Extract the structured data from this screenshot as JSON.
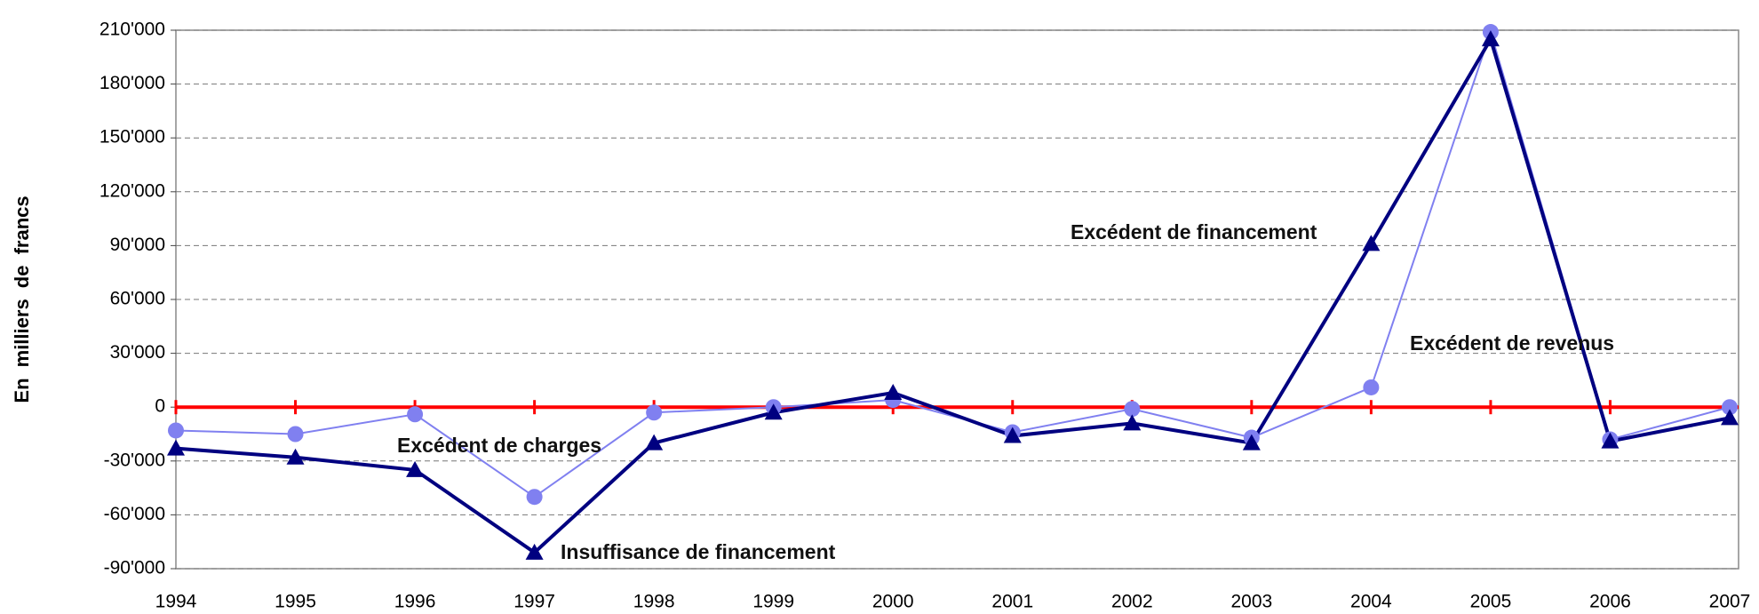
{
  "chart_data": {
    "type": "line",
    "y_label": "En milliers de francs",
    "categories": [
      "1994",
      "1995",
      "1996",
      "1997",
      "1998",
      "1999",
      "2000",
      "2001",
      "2002",
      "2003",
      "2004",
      "2005",
      "2006",
      "2007"
    ],
    "series": [
      {
        "color": "#8080f0",
        "marker": "circle",
        "values": [
          -13000,
          -15000,
          -4000,
          -50000,
          -3000,
          0,
          4000,
          -14000,
          -1000,
          -17000,
          11000,
          209000,
          -18000,
          0
        ]
      },
      {
        "color": "#000080",
        "marker": "triangle",
        "values": [
          -23000,
          -28000,
          -35000,
          -81000,
          -20000,
          -3000,
          8000,
          -16000,
          -9000,
          -20000,
          91000,
          205000,
          -19000,
          -6000
        ]
      }
    ],
    "annotations": [
      "Excédent de financement",
      "Excédent de revenus",
      "Excédent de charges",
      "Insuffisance de financement"
    ],
    "ylim": [
      -90000,
      210000
    ],
    "yticks": [
      {
        "value": -90000,
        "label": "-90'000"
      },
      {
        "value": -60000,
        "label": "-60'000"
      },
      {
        "value": -30000,
        "label": "-30'000"
      },
      0,
      {
        "value": 30000,
        "label": "30'000"
      },
      {
        "value": 60000,
        "label": "60'000"
      },
      {
        "value": 90000,
        "label": "90'000"
      },
      {
        "value": 120000,
        "label": "120'000"
      },
      {
        "value": 150000,
        "label": "150'000"
      },
      {
        "value": 180000,
        "label": "180'000"
      },
      {
        "value": 210000,
        "label": "210'000"
      }
    ],
    "grid": true,
    "zero_line_color": "#ff0000"
  }
}
